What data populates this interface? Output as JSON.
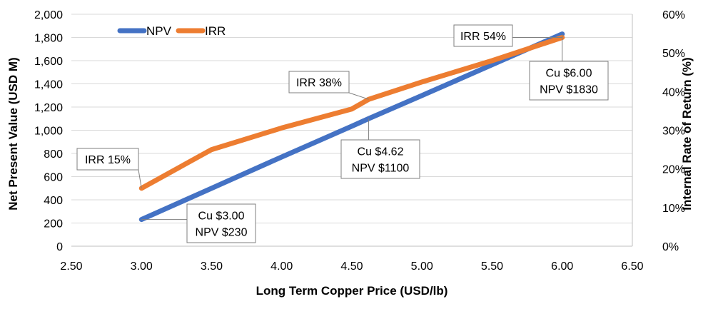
{
  "chart_data": {
    "type": "line",
    "xlabel": "Long Term Copper Price (USD/lb)",
    "ylabel": "Net Present Value (USD M)",
    "y2label": "Internal Rate of Return (%)",
    "xlim": [
      2.5,
      6.5
    ],
    "ylim": [
      0,
      2000
    ],
    "y2lim": [
      0,
      60
    ],
    "x_ticks": [
      "2.50",
      "3.00",
      "3.50",
      "4.00",
      "4.50",
      "5.00",
      "5.50",
      "6.00",
      "6.50"
    ],
    "y_ticks": [
      "0",
      "200",
      "400",
      "600",
      "800",
      "1,000",
      "1,200",
      "1,400",
      "1,600",
      "1,800",
      "2,000"
    ],
    "y2_ticks": [
      "0%",
      "10%",
      "20%",
      "30%",
      "40%",
      "50%",
      "60%"
    ],
    "grid": "horizontal",
    "legend_position": "top-left",
    "series": [
      {
        "name": "NPV",
        "axis": "left",
        "color": "#4472C4",
        "x": [
          3.0,
          3.5,
          4.0,
          4.5,
          4.62,
          5.0,
          5.5,
          6.0
        ],
        "y": [
          230,
          500,
          770,
          1035,
          1100,
          1300,
          1565,
          1830
        ]
      },
      {
        "name": "IRR",
        "axis": "right",
        "color": "#ED7D31",
        "x": [
          3.0,
          3.5,
          4.0,
          4.5,
          4.62,
          5.0,
          5.5,
          6.0
        ],
        "y": [
          15,
          25,
          30.6,
          35.5,
          38,
          42.5,
          48,
          54
        ]
      }
    ],
    "annotations": [
      {
        "lines": [
          "IRR 15%"
        ],
        "x": 3.0,
        "series": "IRR"
      },
      {
        "lines": [
          "Cu $3.00",
          "NPV $230"
        ],
        "x": 3.0,
        "series": "NPV"
      },
      {
        "lines": [
          "IRR 38%"
        ],
        "x": 4.62,
        "series": "IRR"
      },
      {
        "lines": [
          "Cu $4.62",
          "NPV $1100"
        ],
        "x": 4.62,
        "series": "NPV"
      },
      {
        "lines": [
          "IRR 54%"
        ],
        "x": 6.0,
        "series": "IRR"
      },
      {
        "lines": [
          "Cu $6.00",
          "NPV $1830"
        ],
        "x": 6.0,
        "series": "NPV"
      }
    ]
  }
}
